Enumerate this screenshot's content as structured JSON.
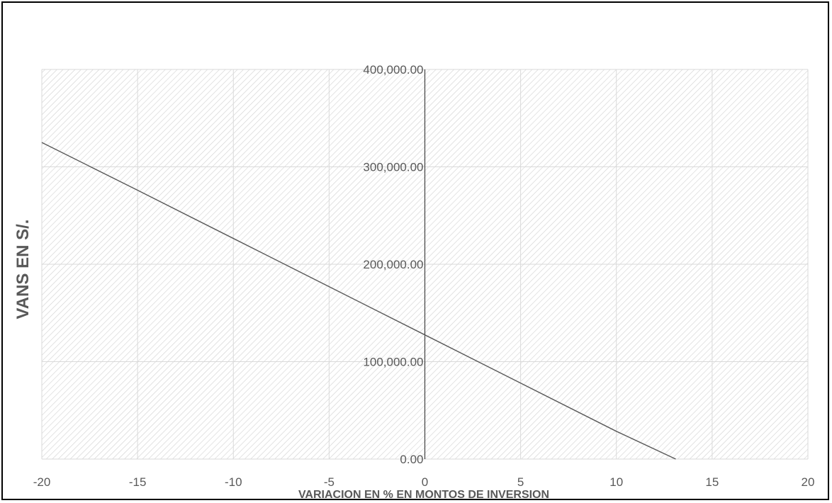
{
  "chart_data": {
    "type": "line",
    "title": "",
    "xlabel": "VARIACION EN % EN MONTOS DE INVERSION",
    "ylabel": "VANS EN  S/.",
    "xlim": [
      -20,
      20
    ],
    "ylim": [
      0,
      400000
    ],
    "x_ticks": [
      "-20",
      "-15",
      "-10",
      "-5",
      "0",
      "5",
      "10",
      "15",
      "20"
    ],
    "y_ticks": [
      "0.00",
      "100,000.00",
      "200,000.00",
      "300,000.00",
      "400,000.00"
    ],
    "grid": true,
    "legend": "none",
    "plot_background": "diagonal-hatch",
    "colors": {
      "line": "#595959",
      "grid": "#d9d9d9",
      "hatch": "#d0d0d0",
      "axis": "#404040",
      "text": "#595959"
    },
    "series": [
      {
        "x": [
          -20,
          -15,
          -10,
          -5,
          0,
          5,
          10,
          13.1
        ],
        "y": [
          325000,
          276000,
          226500,
          177000,
          127500,
          78000,
          28500,
          0
        ]
      }
    ]
  }
}
